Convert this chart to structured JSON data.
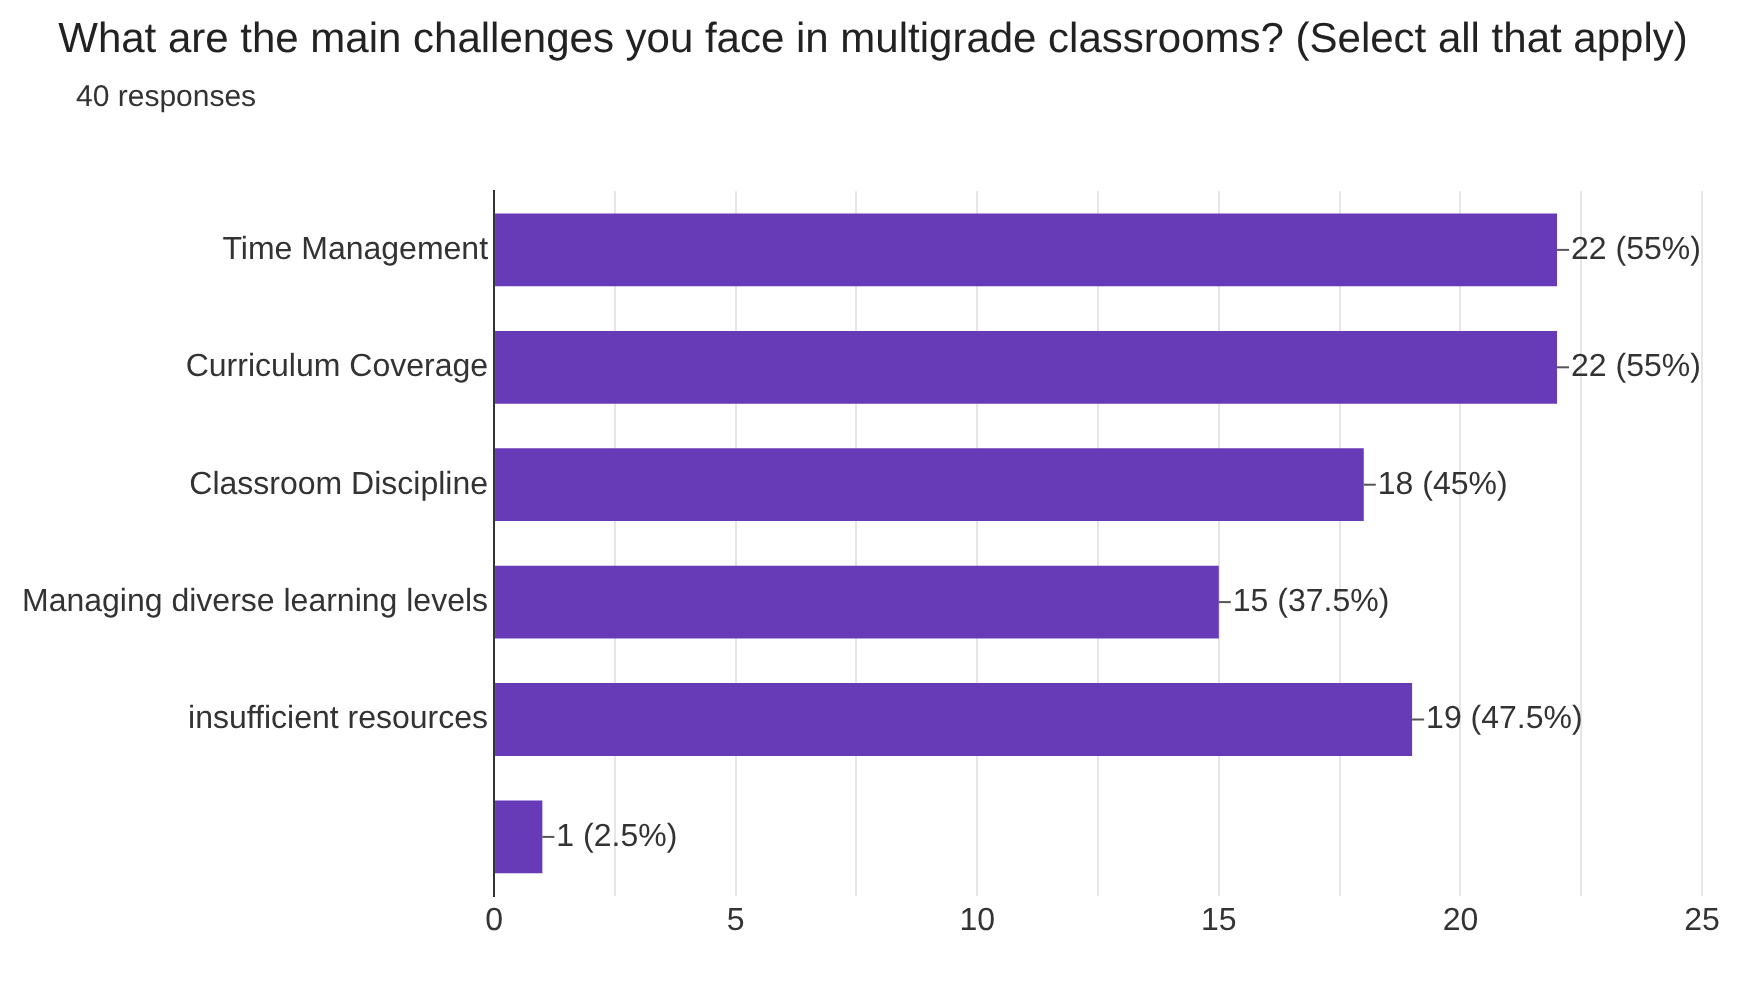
{
  "chart_data": {
    "type": "bar",
    "orientation": "horizontal",
    "title": "What are the main challenges you face in multigrade classrooms? (Select all that apply)",
    "subtitle": "40 responses",
    "categories": [
      "Time Management",
      "Curriculum Coverage",
      "Classroom Discipline",
      "Managing diverse learning levels",
      "insufficient resources",
      null
    ],
    "values": [
      22,
      22,
      18,
      15,
      19,
      1
    ],
    "value_labels": [
      "22 (55%)",
      "22 (55%)",
      "18 (45%)",
      "15 (37.5%)",
      "19 (47.5%)",
      "1 (2.5%)"
    ],
    "color": "#673ab7",
    "xlim": [
      0,
      25
    ],
    "xticks": [
      0,
      {
        "value": 2.5,
        "label": null
      },
      5,
      {
        "value": 7.5,
        "label": null
      },
      10,
      {
        "value": 12.5,
        "label": null
      },
      15,
      {
        "value": 17.5,
        "label": null
      },
      20,
      {
        "value": 22.5,
        "label": null
      },
      25
    ],
    "grid": "x"
  }
}
